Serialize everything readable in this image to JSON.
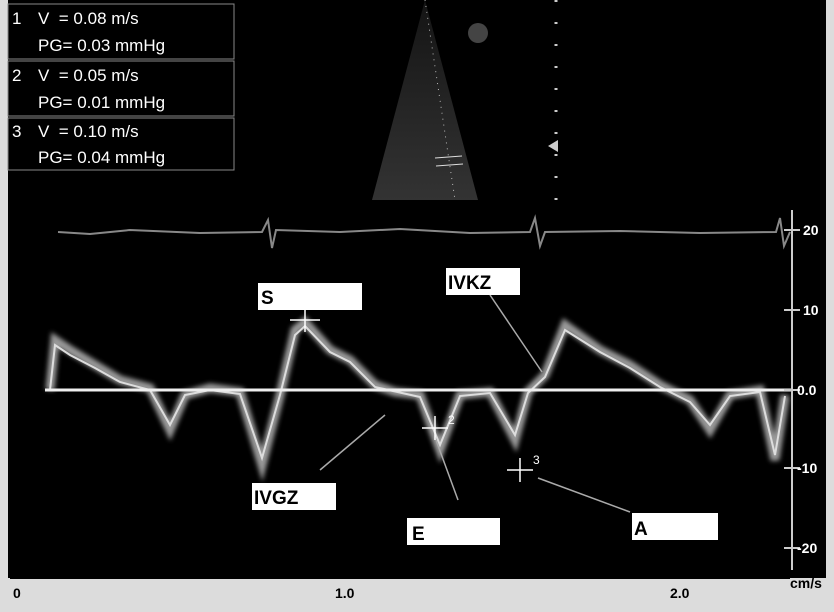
{
  "measurements": [
    {
      "index": "1",
      "velocity": "V  = 0.08 m/s",
      "gradient": "PG= 0.03 mmHg"
    },
    {
      "index": "2",
      "velocity": "V  = 0.05 m/s",
      "gradient": "PG= 0.01 mmHg"
    },
    {
      "index": "3",
      "velocity": "V  = 0.10 m/s",
      "gradient": "PG= 0.04 mmHg"
    }
  ],
  "labels": [
    "S",
    "IVKZ",
    "IVGZ",
    "E",
    "A"
  ],
  "calipers": [
    "2",
    "3"
  ],
  "y_axis": {
    "ticks": [
      "20",
      "10",
      "0.0",
      "-10",
      "-20"
    ],
    "unit": "cm/s"
  },
  "x_axis": {
    "ticks": [
      "0",
      "1.0",
      "2.0"
    ]
  }
}
